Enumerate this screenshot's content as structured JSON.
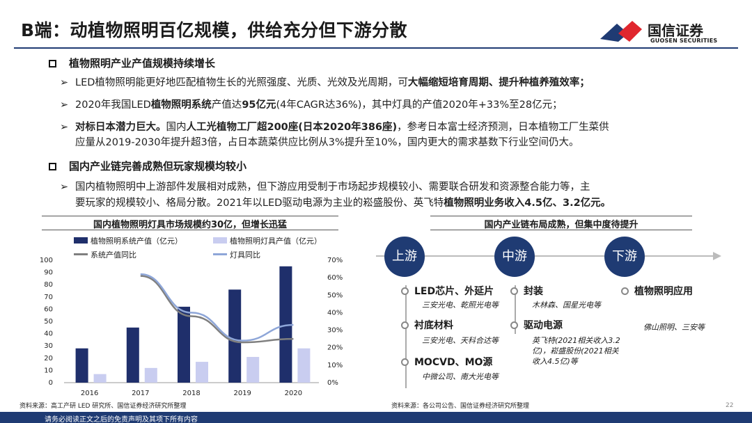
{
  "header": {
    "title": "B端：动植物照明百亿规模，供给充分但下游分散",
    "logo_name": "国信证券",
    "logo_sub": "GUOSEN SECURITIES"
  },
  "sections": [
    {
      "heading": "植物照明产业产值规模持续增长",
      "bullets": [
        [
          "LED植物照明能更好地匹配植物生长的光照强度、光质、光效及光周期，可",
          "大幅缩短培育周期、提升种植养殖效率；"
        ],
        [
          "2020年我国LED",
          "植物照明系统",
          "产值达",
          "95亿元",
          "(4年CAGR达36%)，其中灯具的产值2020年+33%至28亿元；"
        ],
        [
          "对标日本潜力巨大。",
          "国内",
          "人工光植物工厂超200座(日本2020年386座)",
          "，参考日本富士经济预测，日本植物工厂生菜供",
          "应量从2019-2030年提升超3倍，占日本蔬菜供应比例从3%提升至10%，国内更大的需求基数下行业空间仍大。"
        ]
      ]
    },
    {
      "heading": "国内产业链完善成熟但玩家规模均较小",
      "bullets": [
        [
          "国内植物照明中上游部件发展相对成熟，但下游应用受制于市场起步规模较小、需要联合研发和资源整合能力等，主",
          "要玩家的规模较小、格局分散。2021年以LED驱动电源为主业的崧盛股份、英飞特",
          "植物照明业务收入4.5亿、3.2亿元。"
        ]
      ]
    }
  ],
  "chart_data": {
    "type": "bar",
    "title": "国内植物照明灯具市场规模约30亿，但增长迅猛",
    "categories": [
      "2016",
      "2017",
      "2018",
      "2019",
      "2020"
    ],
    "series": [
      {
        "name": "植物照明系统产值（亿元）",
        "values": [
          28,
          45,
          62,
          76,
          95
        ],
        "color": "#1f2f6b",
        "axis": "left"
      },
      {
        "name": "植物照明灯具产值（亿元）",
        "values": [
          7,
          12,
          17,
          21,
          28
        ],
        "color": "#c9cdf0",
        "axis": "left"
      },
      {
        "name": "系统产值同比",
        "values": [
          null,
          61,
          38,
          23,
          25
        ],
        "color": "#7f7f7f",
        "axis": "right",
        "kind": "line"
      },
      {
        "name": "灯具同比",
        "values": [
          null,
          62,
          40,
          24,
          33
        ],
        "color": "#8ea6d8",
        "axis": "right",
        "kind": "line"
      }
    ],
    "ylim": [
      0,
      100
    ],
    "y2lim": [
      0,
      70
    ],
    "yticks": [
      "0",
      "10",
      "20",
      "30",
      "40",
      "50",
      "60",
      "70",
      "80",
      "90",
      "100"
    ],
    "y2ticks": [
      "0%",
      "10%",
      "20%",
      "30%",
      "40%",
      "50%",
      "60%",
      "70%"
    ]
  },
  "chain": {
    "banner": "国内产业链布局成熟，但集中度待提升",
    "stages": [
      "上游",
      "中游",
      "下游"
    ],
    "upstream": [
      {
        "name": "LED芯片、外延片",
        "companies": "三安光电、乾照光电等"
      },
      {
        "name": "衬底材料",
        "companies": "三安光电、天科合达等"
      },
      {
        "name": "MOCVD、MO源",
        "companies": "中微公司、南大光电等"
      }
    ],
    "midstream": [
      {
        "name": "封装",
        "companies": "木林森、国星光电等"
      },
      {
        "name": "驱动电源",
        "companies": "英飞特(2021相关收入3.2亿)，崧盛股份(2021相关收入4.5亿)等"
      }
    ],
    "downstream": [
      {
        "name": "植物照明应用",
        "companies": "佛山照明、三安等"
      }
    ]
  },
  "sources": {
    "left": "资料来源：高工产研 LED 研究所、国信证券经济研究所整理",
    "right": "资料来源：各公司公告、国信证券经济研究所整理"
  },
  "footer": {
    "disclaimer": "请务必阅读正文之后的免责声明及其项下所有内容",
    "page": "22"
  },
  "colors": {
    "brand": "#1f3b73",
    "accent": "#e0262e"
  }
}
